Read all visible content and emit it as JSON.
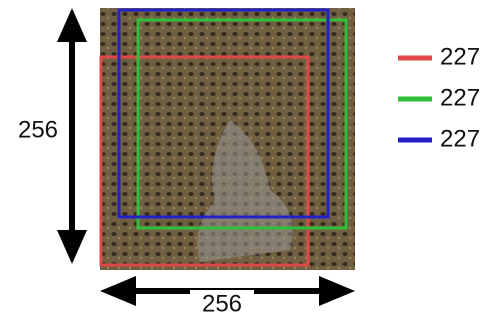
{
  "dimensions": {
    "height_label": "256",
    "width_label": "256"
  },
  "crops": [
    {
      "label": "227",
      "color": "#e04848"
    },
    {
      "label": "227",
      "color": "#2fbf3a"
    },
    {
      "label": "227",
      "color": "#2222c8"
    }
  ]
}
